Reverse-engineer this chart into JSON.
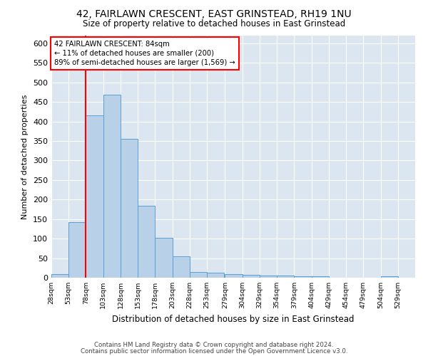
{
  "title": "42, FAIRLAWN CRESCENT, EAST GRINSTEAD, RH19 1NU",
  "subtitle": "Size of property relative to detached houses in East Grinstead",
  "xlabel": "Distribution of detached houses by size in East Grinstead",
  "ylabel": "Number of detached properties",
  "bar_color": "#b8d0e8",
  "bar_edge_color": "#5a9fd4",
  "bg_color": "#dce6f0",
  "annotation_text": "42 FAIRLAWN CRESCENT: 84sqm\n← 11% of detached houses are smaller (200)\n89% of semi-detached houses are larger (1,569) →",
  "redline_x": 78,
  "bin_starts": [
    28,
    53,
    78,
    103,
    128,
    153,
    178,
    203,
    228,
    253,
    279,
    304,
    329,
    354,
    379,
    404,
    429,
    454,
    479,
    504,
    529
  ],
  "bar_heights": [
    10,
    143,
    415,
    468,
    355,
    185,
    102,
    54,
    15,
    13,
    10,
    8,
    5,
    5,
    3,
    3,
    0,
    0,
    0,
    3
  ],
  "bin_width": 25,
  "ylim": [
    0,
    620
  ],
  "yticks": [
    0,
    50,
    100,
    150,
    200,
    250,
    300,
    350,
    400,
    450,
    500,
    550,
    600
  ],
  "footer_line1": "Contains HM Land Registry data © Crown copyright and database right 2024.",
  "footer_line2": "Contains public sector information licensed under the Open Government Licence v3.0."
}
